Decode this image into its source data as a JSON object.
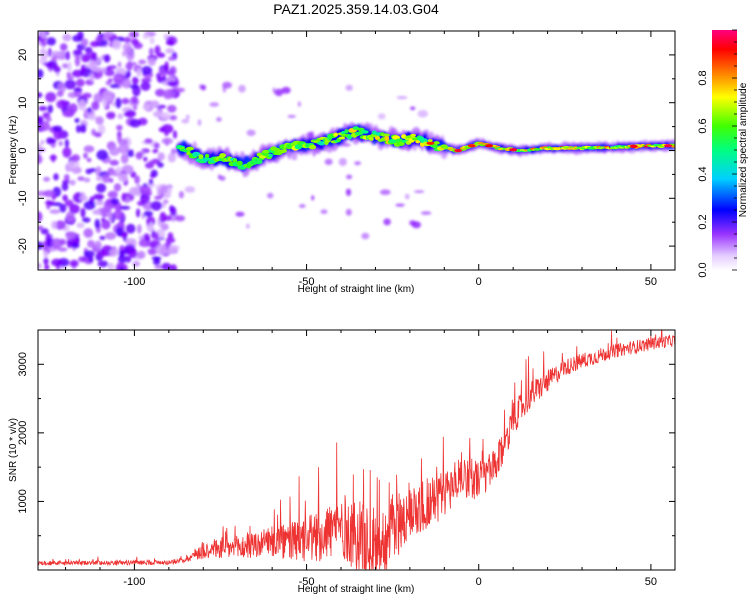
{
  "title": "PAZ1.2025.359.14.03.G04",
  "chart_data": [
    {
      "type": "heatmap",
      "name": "spectrogram",
      "xlabel": "Height of straight line (km)",
      "ylabel": "Frequency (Hz)",
      "xlim": [
        -128,
        57
      ],
      "ylim": [
        -25,
        25
      ],
      "x_ticks": [
        -100,
        -50,
        0,
        50
      ],
      "y_ticks": [
        -20,
        -10,
        0,
        10,
        20
      ],
      "colorbar": {
        "label": "Normalized spectral amplitude",
        "range": [
          0,
          1
        ],
        "ticks": [
          "0.0",
          "0.2",
          "0.4",
          "0.6",
          "0.8"
        ],
        "tick_values": [
          0.0,
          0.2,
          0.4,
          0.6,
          0.8
        ],
        "colors": [
          "#ffffff",
          "#d9b3ff",
          "#8000ff",
          "#0000ff",
          "#00c8ff",
          "#00ff80",
          "#40ff00",
          "#ffff00",
          "#ff8000",
          "#ff0000",
          "#ff0080"
        ]
      },
      "ridge": [
        {
          "x": -86,
          "f": 0.5
        },
        {
          "x": -80,
          "f": -2.0
        },
        {
          "x": -74,
          "f": -1.5
        },
        {
          "x": -68,
          "f": -3.0
        },
        {
          "x": -62,
          "f": -1.0
        },
        {
          "x": -56,
          "f": 0.5
        },
        {
          "x": -48,
          "f": 1.5
        },
        {
          "x": -42,
          "f": 2.5
        },
        {
          "x": -36,
          "f": 4.0
        },
        {
          "x": -30,
          "f": 3.0
        },
        {
          "x": -24,
          "f": 2.0
        },
        {
          "x": -18,
          "f": 2.5
        },
        {
          "x": -12,
          "f": 1.0
        },
        {
          "x": -6,
          "f": 0.0
        },
        {
          "x": 0,
          "f": 1.5
        },
        {
          "x": 6,
          "f": 0.5
        },
        {
          "x": 12,
          "f": 0.0
        },
        {
          "x": 20,
          "f": 0.5
        },
        {
          "x": 30,
          "f": 0.5
        },
        {
          "x": 40,
          "f": 0.7
        },
        {
          "x": 50,
          "f": 1.0
        },
        {
          "x": 57,
          "f": 1.0
        }
      ]
    },
    {
      "type": "line",
      "name": "snr",
      "color": "#ee3333",
      "xlabel": "Height of straight line (km)",
      "ylabel": "SNR (10 * v/v)",
      "xlim": [
        -128,
        57
      ],
      "ylim": [
        0,
        3500
      ],
      "x_ticks": [
        -100,
        -50,
        0,
        50
      ],
      "y_ticks": [
        1000,
        2000,
        3000
      ],
      "baseline": [
        {
          "x": -128,
          "y": 100
        },
        {
          "x": -90,
          "y": 110
        },
        {
          "x": -85,
          "y": 150
        },
        {
          "x": -80,
          "y": 300
        },
        {
          "x": -70,
          "y": 320
        },
        {
          "x": -60,
          "y": 400
        },
        {
          "x": -50,
          "y": 420
        },
        {
          "x": -40,
          "y": 650
        },
        {
          "x": -30,
          "y": 300
        },
        {
          "x": -20,
          "y": 850
        },
        {
          "x": -10,
          "y": 1100
        },
        {
          "x": -5,
          "y": 1400
        },
        {
          "x": 0,
          "y": 1300
        },
        {
          "x": 5,
          "y": 1500
        },
        {
          "x": 10,
          "y": 2200
        },
        {
          "x": 15,
          "y": 2550
        },
        {
          "x": 20,
          "y": 2750
        },
        {
          "x": 25,
          "y": 2950
        },
        {
          "x": 30,
          "y": 3050
        },
        {
          "x": 40,
          "y": 3200
        },
        {
          "x": 50,
          "y": 3300
        },
        {
          "x": 57,
          "y": 3350
        }
      ],
      "noise_amplitude": [
        {
          "x": -128,
          "a": 60
        },
        {
          "x": -85,
          "a": 70
        },
        {
          "x": -80,
          "a": 280
        },
        {
          "x": -60,
          "a": 450
        },
        {
          "x": -45,
          "a": 800
        },
        {
          "x": -35,
          "a": 1100
        },
        {
          "x": -20,
          "a": 900
        },
        {
          "x": -10,
          "a": 700
        },
        {
          "x": 0,
          "a": 600
        },
        {
          "x": 15,
          "a": 400
        },
        {
          "x": 25,
          "a": 250
        },
        {
          "x": 40,
          "a": 200
        },
        {
          "x": 57,
          "a": 180
        }
      ]
    }
  ]
}
